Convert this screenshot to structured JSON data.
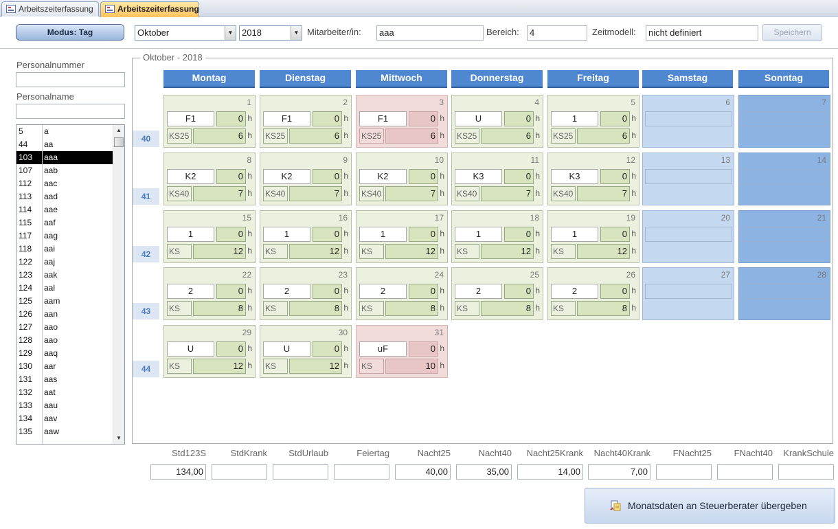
{
  "tabs": [
    {
      "label": "Arbeitszeiterfassung"
    },
    {
      "label": "Arbeitszeiterfassung"
    }
  ],
  "header": {
    "mode_button": "Modus: Tag",
    "month": "Oktober",
    "year": "2018",
    "employee_label": "Mitarbeiter/in:",
    "employee_value": "aaa",
    "area_label": "Bereich:",
    "area_value": "4",
    "model_label": "Zeitmodell:",
    "model_value": "nicht definiert",
    "save_label": "Speichern"
  },
  "sidebar": {
    "number_label": "Personalnummer",
    "number_value": "",
    "name_label": "Personalname",
    "name_value": "",
    "list": [
      {
        "id": "5",
        "name": "a"
      },
      {
        "id": "44",
        "name": "aa"
      },
      {
        "id": "103",
        "name": "aaa"
      },
      {
        "id": "107",
        "name": "aab"
      },
      {
        "id": "112",
        "name": "aac"
      },
      {
        "id": "113",
        "name": "aad"
      },
      {
        "id": "114",
        "name": "aae"
      },
      {
        "id": "115",
        "name": "aaf"
      },
      {
        "id": "117",
        "name": "aag"
      },
      {
        "id": "118",
        "name": "aai"
      },
      {
        "id": "122",
        "name": "aaj"
      },
      {
        "id": "123",
        "name": "aak"
      },
      {
        "id": "124",
        "name": "aal"
      },
      {
        "id": "125",
        "name": "aam"
      },
      {
        "id": "126",
        "name": "aan"
      },
      {
        "id": "127",
        "name": "aao"
      },
      {
        "id": "128",
        "name": "aao"
      },
      {
        "id": "129",
        "name": "aaq"
      },
      {
        "id": "130",
        "name": "aar"
      },
      {
        "id": "131",
        "name": "aas"
      },
      {
        "id": "132",
        "name": "aat"
      },
      {
        "id": "133",
        "name": "aau"
      },
      {
        "id": "134",
        "name": "aav"
      },
      {
        "id": "135",
        "name": "aaw"
      }
    ],
    "selected_index": 2
  },
  "calendar": {
    "title": "Oktober - 2018",
    "weekdays": [
      "Montag",
      "Dienstag",
      "Mittwoch",
      "Donnerstag",
      "Freitag",
      "Samstag",
      "Sonntag"
    ],
    "hour_unit": "h",
    "weeks": [
      {
        "no": "40",
        "days": [
          {
            "d": "1",
            "code": "F1",
            "hrs": "0",
            "ks": "KS25",
            "val": "6"
          },
          {
            "d": "2",
            "code": "F1",
            "hrs": "0",
            "ks": "KS25",
            "val": "6"
          },
          {
            "d": "3",
            "code": "F1",
            "hrs": "0",
            "ks": "KS25",
            "val": "6",
            "pink": true
          },
          {
            "d": "4",
            "code": "U",
            "hrs": "0",
            "ks": "KS25",
            "val": "6"
          },
          {
            "d": "5",
            "code": "1",
            "hrs": "0",
            "ks": "KS25",
            "val": "6"
          },
          {
            "d": "6",
            "we": "sat"
          },
          {
            "d": "7",
            "we": "sun"
          }
        ]
      },
      {
        "no": "41",
        "days": [
          {
            "d": "8",
            "code": "K2",
            "hrs": "0",
            "ks": "KS40",
            "val": "7"
          },
          {
            "d": "9",
            "code": "K2",
            "hrs": "0",
            "ks": "KS40",
            "val": "7"
          },
          {
            "d": "10",
            "code": "K2",
            "hrs": "0",
            "ks": "KS40",
            "val": "7"
          },
          {
            "d": "11",
            "code": "K3",
            "hrs": "0",
            "ks": "KS40",
            "val": "7"
          },
          {
            "d": "12",
            "code": "K3",
            "hrs": "0",
            "ks": "KS40",
            "val": "7"
          },
          {
            "d": "13",
            "we": "sat"
          },
          {
            "d": "14",
            "we": "sun"
          }
        ]
      },
      {
        "no": "42",
        "days": [
          {
            "d": "15",
            "code": "1",
            "hrs": "0",
            "ks": "KS",
            "val": "12"
          },
          {
            "d": "16",
            "code": "1",
            "hrs": "0",
            "ks": "KS",
            "val": "12"
          },
          {
            "d": "17",
            "code": "1",
            "hrs": "0",
            "ks": "KS",
            "val": "12"
          },
          {
            "d": "18",
            "code": "1",
            "hrs": "0",
            "ks": "KS",
            "val": "12"
          },
          {
            "d": "19",
            "code": "1",
            "hrs": "0",
            "ks": "KS",
            "val": "12"
          },
          {
            "d": "20",
            "we": "sat"
          },
          {
            "d": "21",
            "we": "sun"
          }
        ]
      },
      {
        "no": "43",
        "days": [
          {
            "d": "22",
            "code": "2",
            "hrs": "0",
            "ks": "KS",
            "val": "8"
          },
          {
            "d": "23",
            "code": "2",
            "hrs": "0",
            "ks": "KS",
            "val": "8"
          },
          {
            "d": "24",
            "code": "2",
            "hrs": "0",
            "ks": "KS",
            "val": "8"
          },
          {
            "d": "25",
            "code": "2",
            "hrs": "0",
            "ks": "KS",
            "val": "8"
          },
          {
            "d": "26",
            "code": "2",
            "hrs": "0",
            "ks": "KS",
            "val": "8"
          },
          {
            "d": "27",
            "we": "sat"
          },
          {
            "d": "28",
            "we": "sun"
          }
        ]
      },
      {
        "no": "44",
        "days": [
          {
            "d": "29",
            "code": "U",
            "hrs": "0",
            "ks": "KS",
            "val": "12"
          },
          {
            "d": "30",
            "code": "U",
            "hrs": "0",
            "ks": "KS",
            "val": "12"
          },
          {
            "d": "31",
            "code": "uF",
            "hrs": "0",
            "ks": "KS",
            "val": "10",
            "pink": true
          }
        ]
      }
    ]
  },
  "summary": [
    {
      "label": "Std123S",
      "value": "134,00"
    },
    {
      "label": "StdKrank",
      "value": ""
    },
    {
      "label": "StdUrlaub",
      "value": ""
    },
    {
      "label": "Feiertag",
      "value": ""
    },
    {
      "label": "Nacht25",
      "value": "40,00"
    },
    {
      "label": "Nacht40",
      "value": "35,00"
    },
    {
      "label": "Nacht25Krank",
      "value": "14,00"
    },
    {
      "label": "Nacht40Krank",
      "value": "7,00"
    },
    {
      "label": "FNacht25",
      "value": ""
    },
    {
      "label": "FNacht40",
      "value": ""
    },
    {
      "label": "KrankSchule",
      "value": ""
    }
  ],
  "transfer_button": "Monatsdaten an Steuerberater übergeben"
}
